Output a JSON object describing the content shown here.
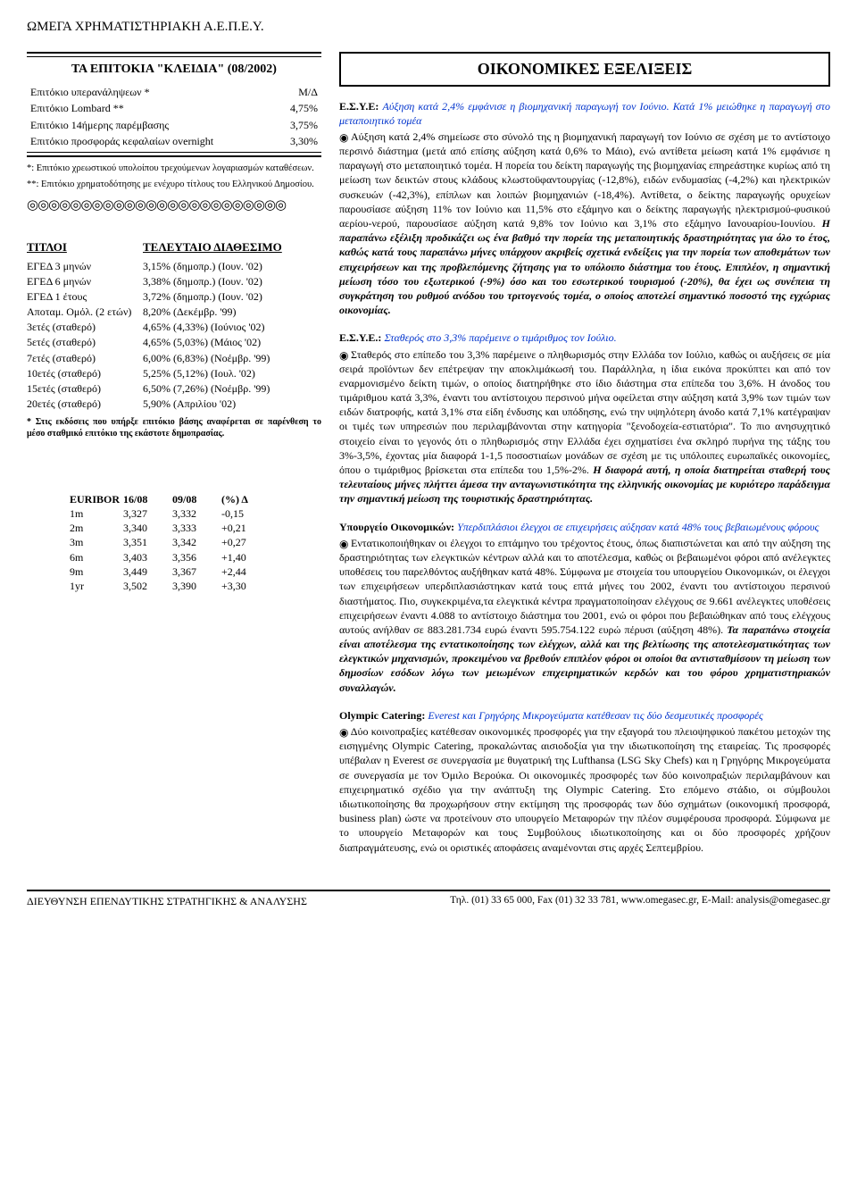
{
  "header": {
    "company": "ΩΜΕΓΑ ΧΡΗΜΑΤΙΣΤΗΡΙΑΚΗ Α.Ε.Π.Ε.Υ."
  },
  "main_title": "ΟΙΚΟΝΟΜΙΚΕΣ ΕΞΕΛΙΞΕΙΣ",
  "rates": {
    "title": "ΤΑ ΕΠΙΤΟΚΙΑ \"ΚΛΕΙΔΙΑ\" (08/2002)",
    "rows": [
      {
        "label": "Επιτόκιο υπερανάληψεων *",
        "value": "Μ/Δ"
      },
      {
        "label": "Επιτόκιο Lombard **",
        "value": "4,75%"
      },
      {
        "label": "Επιτόκιο 14ήμερης παρέμβασης",
        "value": "3,75%"
      },
      {
        "label": "Επιτόκιο προσφοράς κεφαλαίων overnight",
        "value": "3,30%"
      }
    ],
    "footnote1": "*: Επιτόκιο χρεωστικού υπολοίπου τρεχούμενων λογαριασμών καταθέσεων.",
    "footnote2": "**: Επιτόκιο χρηματοδότησης με ενέχυρο τίτλους του Ελληνικού Δημοσίου."
  },
  "yields": {
    "col_a": "ΤΙΤΛΟΙ",
    "col_b": "ΤΕΛΕΥΤΑΙΟ ΔΙΑΘΕΣΙΜΟ",
    "rows": [
      {
        "a": "ΕΓΕΔ 3 μηνών",
        "b": "3,15% (δημοπρ.) (Ιουν. '02)"
      },
      {
        "a": "ΕΓΕΔ 6 μηνών",
        "b": "3,38% (δημοπρ.) (Ιουν. '02)"
      },
      {
        "a": "ΕΓΕΔ 1 έτους",
        "b": "3,72% (δημοπρ.) (Ιουν. '02)"
      },
      {
        "a": "Αποταμ. Ομόλ. (2 ετών)",
        "b": "8,20% (Δεκέμβρ. '99)"
      },
      {
        "a": "3ετές (σταθερό)",
        "b": "4,65% (4,33%) (Ιούνιος '02)"
      },
      {
        "a": "5ετές (σταθερό)",
        "b": "4,65% (5,03%) (Μάιος '02)"
      },
      {
        "a": "7ετές (σταθερό)",
        "b": "6,00% (6,83%) (Νοέμβρ. '99)"
      },
      {
        "a": "10ετές (σταθερό)",
        "b": "5,25% (5,12%) (Ιουλ. '02)"
      },
      {
        "a": "15ετές (σταθερό)",
        "b": "6,50% (7,26%) (Νοέμβρ. '99)"
      },
      {
        "a": "20ετές (σταθερό)",
        "b": "5,90% (Απριλίου '02)"
      }
    ],
    "note": "* Στις εκδόσεις που υπήρξε επιτόκιο βάσης αναφέρεται σε παρένθεση το μέσο σταθμικό επιτόκιο της εκάστοτε δημοπρασίας."
  },
  "euribor": {
    "headers": [
      "EURIBOR",
      "16/08",
      "09/08",
      "(%) Δ"
    ],
    "rows": [
      [
        "1m",
        "3,327",
        "3,332",
        "-0,15"
      ],
      [
        "2m",
        "3,340",
        "3,333",
        "+0,21"
      ],
      [
        "3m",
        "3,351",
        "3,342",
        "+0,27"
      ],
      [
        "6m",
        "3,403",
        "3,356",
        "+1,40"
      ],
      [
        "9m",
        "3,449",
        "3,367",
        "+2,44"
      ],
      [
        "1yr",
        "3,502",
        "3,390",
        "+3,30"
      ]
    ]
  },
  "articles": {
    "a1": {
      "lead": "Ε.Σ.Υ.Ε: ",
      "headline": "Αύξηση κατά 2,4% εμφάνισε η βιομηχανική παραγωγή τον Ιούνιο. Κατά 1% μειώθηκε η παραγωγή στο μεταποιητικό τομέα",
      "body_pre": "Αύξηση κατά 2,4% σημείωσε στο σύνολό της η βιομηχανική παραγωγή τον Ιούνιο σε σχέση με το αντίστοιχο περσινό διάστημα (μετά από επίσης αύξηση κατά 0,6% το Μάιο), ενώ αντίθετα μείωση κατά 1% εμφάνισε η παραγωγή στο μεταποιητικό τομέα. Η πορεία του δείκτη παραγωγής της βιομηχανίας επηρεάστηκε κυρίως από τη μείωση των δεικτών στους κλάδους κλωστοϋφαντουργίας (-12,8%), ειδών ενδυμασίας (-4,2%) και ηλεκτρικών συσκευών (-42,3%), επίπλων και λοιπών βιομηχανιών (-18,4%). Αντίθετα, ο δείκτης παραγωγής ορυχείων παρουσίασε αύξηση 11% τον Ιούνιο και 11,5% στο εξάμηνο και ο δείκτης παραγωγής ηλεκτρισμού-φυσικού αερίου-νερού, παρουσίασε αύξηση κατά 9,8% τον Ιούνιο και 3,1% στο εξάμηνο Ιανουαρίου-Ιουνίου. ",
      "body_ital": "Η παραπάνω εξέλιξη προδικάζει ως ένα βαθμό την πορεία της μεταποιητικής δραστηριότητας για όλο το έτος, καθώς κατά τους παραπάνω μήνες υπάρχουν ακριβείς σχετικά ενδείξεις για την πορεία των αποθεμάτων των επιχειρήσεων και της προβλεπόμενης ζήτησης για το υπόλοιπο διάστημα του έτους. Επιπλέον, η σημαντική μείωση τόσο του εξωτερικού (-9%) όσο και του εσωτερικού τουρισμού (-20%), θα έχει ως συνέπεια τη συγκράτηση του ρυθμού ανόδου του τριτογενούς τομέα, ο οποίος αποτελεί σημαντικό ποσοστό της εγχώριας οικονομίας."
    },
    "a2": {
      "lead": "Ε.Σ.Υ.Ε.: ",
      "headline": "Σταθερός στο 3,3% παρέμεινε ο τιμάριθμος τον Ιούλιο.",
      "body_pre": "Σταθερός στο επίπεδο του 3,3% παρέμεινε ο πληθωρισμός στην Ελλάδα τον Ιούλιο, καθώς οι αυξήσεις σε μία σειρά προϊόντων δεν επέτρεψαν την αποκλιμάκωσή του. Παράλληλα, η ίδια εικόνα προκύπτει και από τον εναρμονισμένο δείκτη τιμών, ο οποίος διατηρήθηκε στο ίδιο διάστημα στα επίπεδα του 3,6%. Η άνοδος του τιμάριθμου κατά 3,3%, έναντι του αντίστοιχου περσινού μήνα οφείλεται στην αύξηση κατά 3,9% των τιμών των ειδών διατροφής, κατά 3,1% στα είδη ένδυσης και υπόδησης, ενώ την υψηλότερη άνοδο κατά 7,1% κατέγραψαν οι τιμές των υπηρεσιών που περιλαμβάνονται στην κατηγορία \"ξενοδοχεία-εστιατόρια\". Το πιο ανησυχητικό στοιχείο είναι το γεγονός ότι ο πληθωρισμός στην Ελλάδα έχει σχηματίσει ένα σκληρό πυρήνα της τάξης του 3%-3,5%, έχοντας μία διαφορά 1-1,5 ποσοστιαίων μονάδων σε σχέση με τις υπόλοιπες ευρωπαϊκές οικονομίες, όπου ο τιμάριθμος βρίσκεται στα επίπεδα του 1,5%-2%. ",
      "body_ital": "Η διαφορά αυτή, η οποία διατηρείται σταθερή τους τελευταίους μήνες πλήττει άμεσα την ανταγωνιστικότητα της ελληνικής οικονομίας με κυριότερο παράδειγμα την σημαντική μείωση της τουριστικής δραστηριότητας."
    },
    "a3": {
      "lead": "Υπουργείο Οικονομικών: ",
      "headline": "Υπερδιπλάσιοι έλεγχοι σε επιχειρήσεις αύξησαν κατά 48% τους βεβαιωμένους φόρους",
      "body_pre": "Εντατικοποιήθηκαν οι έλεγχοι το επτάμηνο του τρέχοντος έτους, όπως διαπιστώνεται και από την αύξηση της δραστηριότητας των ελεγκτικών κέντρων αλλά και το αποτέλεσμα, καθώς οι βεβαιωμένοι φόροι από ανέλεγκτες υποθέσεις του παρελθόντος αυξήθηκαν κατά 48%. Σύμφωνα με στοιχεία του υπουργείου Οικονομικών, οι έλεγχοι των επιχειρήσεων υπερδιπλασιάστηκαν κατά τους επτά μήνες του 2002, έναντι του αντίστοιχου περσινού διαστήματος. Πιο, συγκεκριμένα,τα ελεγκτικά κέντρα πραγματοποίησαν ελέγχους σε 9.661 ανέλεγκτες υποθέσεις επιχειρήσεων έναντι 4.088 το αντίστοιχο διάστημα του 2001, ενώ οι φόροι που βεβαιώθηκαν από τους ελέγχους αυτούς ανήλθαν σε 883.281.734 ευρώ έναντι 595.754.122 ευρώ πέρυσι (αύξηση 48%). ",
      "body_ital": "Τα παραπάνω στοιχεία είναι αποτέλεσμα της εντατικοποίησης των ελέγχων, αλλά και της βελτίωσης της αποτελεσματικότητας των ελεγκτικών μηχανισμών, προκειμένου να βρεθούν επιπλέον φόροι οι οποίοι θα αντισταθμίσουν τη μείωση των δημοσίων εσόδων λόγω των μειωμένων επιχειρηματικών κερδών και του φόρου χρηματιστηριακών συναλλαγών."
    },
    "a4": {
      "lead": "Olympic Catering: ",
      "headline": "Everest και Γρηγόρης Μικρογεύματα κατέθεσαν τις δύο δεσμευτικές προσφορές",
      "body": "Δύο κοινοπραξίες κατέθεσαν οικονομικές προσφορές για την εξαγορά του πλειοψηφικού πακέτου μετοχών της εισηγμένης Olympic Catering, προκαλώντας αισιοδοξία για την ιδιωτικοποίηση της εταιρείας. Τις προσφορές υπέβαλαν η Everest σε συνεργασία με θυγατρική της Lufthansa (LSG Sky Chefs) και η Γρηγόρης Μικρογεύματα σε συνεργασία με τον Όμιλο Βερούκα. Οι οικονομικές προσφορές των δύο κοινοπραξιών περιλαμβάνουν και επιχειρηματικό σχέδιο για την ανάπτυξη της Olympic Catering. Στο επόμενο στάδιο, οι σύμβουλοι ιδιωτικοποίησης θα προχωρήσουν στην εκτίμηση της προσφοράς των δύο σχημάτων (οικονομική προσφορά, business plan) ώστε να προτείνουν στο υπουργείο Μεταφορών την πλέον συμφέρουσα προσφορά. Σύμφωνα με το υπουργείο Μεταφορών και τους Συμβούλους ιδιωτικοποίησης και οι δύο προσφορές χρήζουν διαπραγμάτευσης, ενώ οι οριστικές αποφάσεις αναμένονται στις αρχές Σεπτεμβρίου."
    }
  },
  "footer": {
    "dept": "ΔΙΕΥΘΥΝΣΗ ΕΠΕΝΔΥΤΙΚΗΣ ΣΤΡΑΤΗΓΙΚΗΣ & ΑΝΑΛΥΣΗΣ",
    "contact": "Τηλ. (01) 33 65 000, Fax (01) 32 33 781, www.omegasec.gr, E-Mail: analysis@omegasec.gr"
  }
}
